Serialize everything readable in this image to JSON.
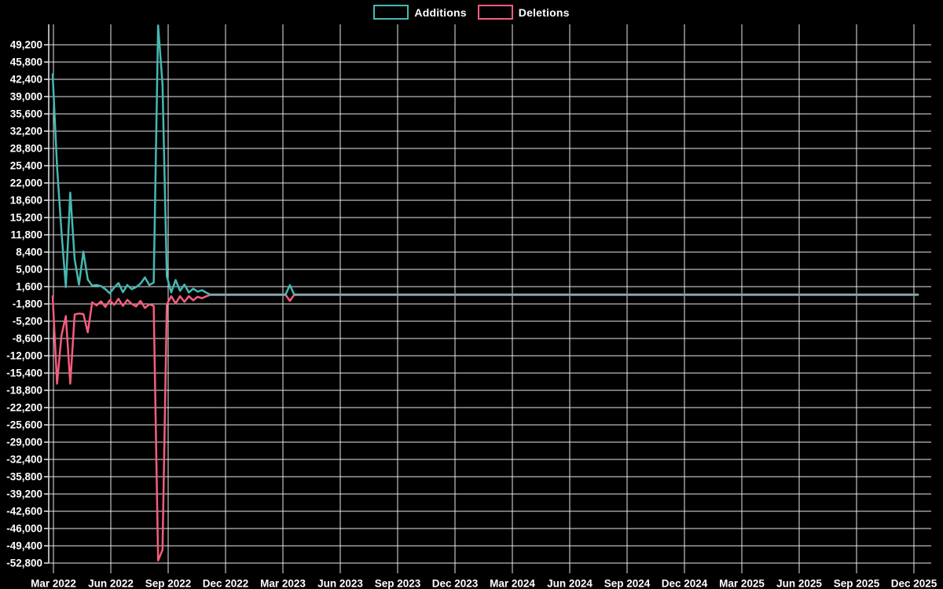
{
  "legend": {
    "items": [
      {
        "label": "Additions",
        "color": "#46b8b2"
      },
      {
        "label": "Deletions",
        "color": "#f65d7c"
      }
    ]
  },
  "chart_data": {
    "type": "line",
    "title": "",
    "xlabel": "",
    "ylabel": "",
    "background": "#000000",
    "text_color": "#ffffff",
    "grid_color": "#e8e8e8",
    "grid": true,
    "legend_position": "top-center",
    "overlap_color": "#8ca3ad",
    "x_tick_labels": [
      "Mar 2022",
      "Jun 2022",
      "Sep 2022",
      "Dec 2022",
      "Mar 2023",
      "Jun 2023",
      "Sep 2023",
      "Dec 2023",
      "Mar 2024",
      "Jun 2024",
      "Sep 2024",
      "Dec 2024",
      "Mar 2025",
      "Jun 2025",
      "Sep 2025",
      "Dec 2025"
    ],
    "y_axis": {
      "max": 49200,
      "min": -52800,
      "step": 3400,
      "tick_labels": [
        "49,200",
        "45,800",
        "42,400",
        "39,000",
        "35,600",
        "32,200",
        "28,800",
        "25,400",
        "22,000",
        "18,600",
        "15,200",
        "11,800",
        "8,400",
        "5,000",
        "1,600",
        "-1,800",
        "-5,200",
        "-8,600",
        "-12,000",
        "-15,400",
        "-18,800",
        "-22,200",
        "-25,600",
        "-29,000",
        "-32,400",
        "-35,800",
        "-39,200",
        "-42,600",
        "-46,000",
        "-49,400",
        "-52,800"
      ]
    },
    "x_axis_note": "weekly points, Mar 2022 through mid-Dec 2025",
    "weeks_total": 198,
    "default_value": 0,
    "series": [
      {
        "name": "Additions",
        "color": "#46b8b2",
        "sparse_points": [
          [
            0,
            43400
          ],
          [
            1,
            25200
          ],
          [
            2,
            12400
          ],
          [
            3,
            1500
          ],
          [
            4,
            20100
          ],
          [
            5,
            7000
          ],
          [
            6,
            2000
          ],
          [
            7,
            8500
          ],
          [
            8,
            3000
          ],
          [
            9,
            1800
          ],
          [
            10,
            1900
          ],
          [
            11,
            1700
          ],
          [
            12,
            1100
          ],
          [
            13,
            300
          ],
          [
            14,
            1400
          ],
          [
            15,
            2300
          ],
          [
            16,
            500
          ],
          [
            17,
            1900
          ],
          [
            18,
            1100
          ],
          [
            19,
            1500
          ],
          [
            20,
            2200
          ],
          [
            21,
            3400
          ],
          [
            22,
            1900
          ],
          [
            23,
            2400
          ],
          [
            24,
            53000
          ],
          [
            25,
            41400
          ],
          [
            26,
            3600
          ],
          [
            27,
            450
          ],
          [
            28,
            2900
          ],
          [
            29,
            750
          ],
          [
            30,
            2000
          ],
          [
            31,
            450
          ],
          [
            32,
            1200
          ],
          [
            33,
            600
          ],
          [
            34,
            900
          ],
          [
            35,
            400
          ],
          [
            54,
            1900
          ]
        ]
      },
      {
        "name": "Deletions",
        "color": "#f65d7c",
        "sparse_points": [
          [
            0,
            -300
          ],
          [
            1,
            -17500
          ],
          [
            2,
            -8000
          ],
          [
            3,
            -4200
          ],
          [
            4,
            -17500
          ],
          [
            5,
            -3900
          ],
          [
            6,
            -3700
          ],
          [
            7,
            -3800
          ],
          [
            8,
            -7400
          ],
          [
            9,
            -1500
          ],
          [
            10,
            -2100
          ],
          [
            11,
            -1300
          ],
          [
            12,
            -2400
          ],
          [
            13,
            -1100
          ],
          [
            14,
            -2000
          ],
          [
            15,
            -800
          ],
          [
            16,
            -2200
          ],
          [
            17,
            -1000
          ],
          [
            18,
            -1800
          ],
          [
            19,
            -2300
          ],
          [
            20,
            -1200
          ],
          [
            21,
            -2600
          ],
          [
            22,
            -1900
          ],
          [
            23,
            -2200
          ],
          [
            24,
            -52300
          ],
          [
            25,
            -50200
          ],
          [
            26,
            -1900
          ],
          [
            27,
            -300
          ],
          [
            28,
            -1700
          ],
          [
            29,
            -300
          ],
          [
            30,
            -1400
          ],
          [
            31,
            -300
          ],
          [
            32,
            -1100
          ],
          [
            33,
            -400
          ],
          [
            34,
            -700
          ],
          [
            35,
            -300
          ],
          [
            54,
            -1200
          ]
        ]
      }
    ]
  }
}
